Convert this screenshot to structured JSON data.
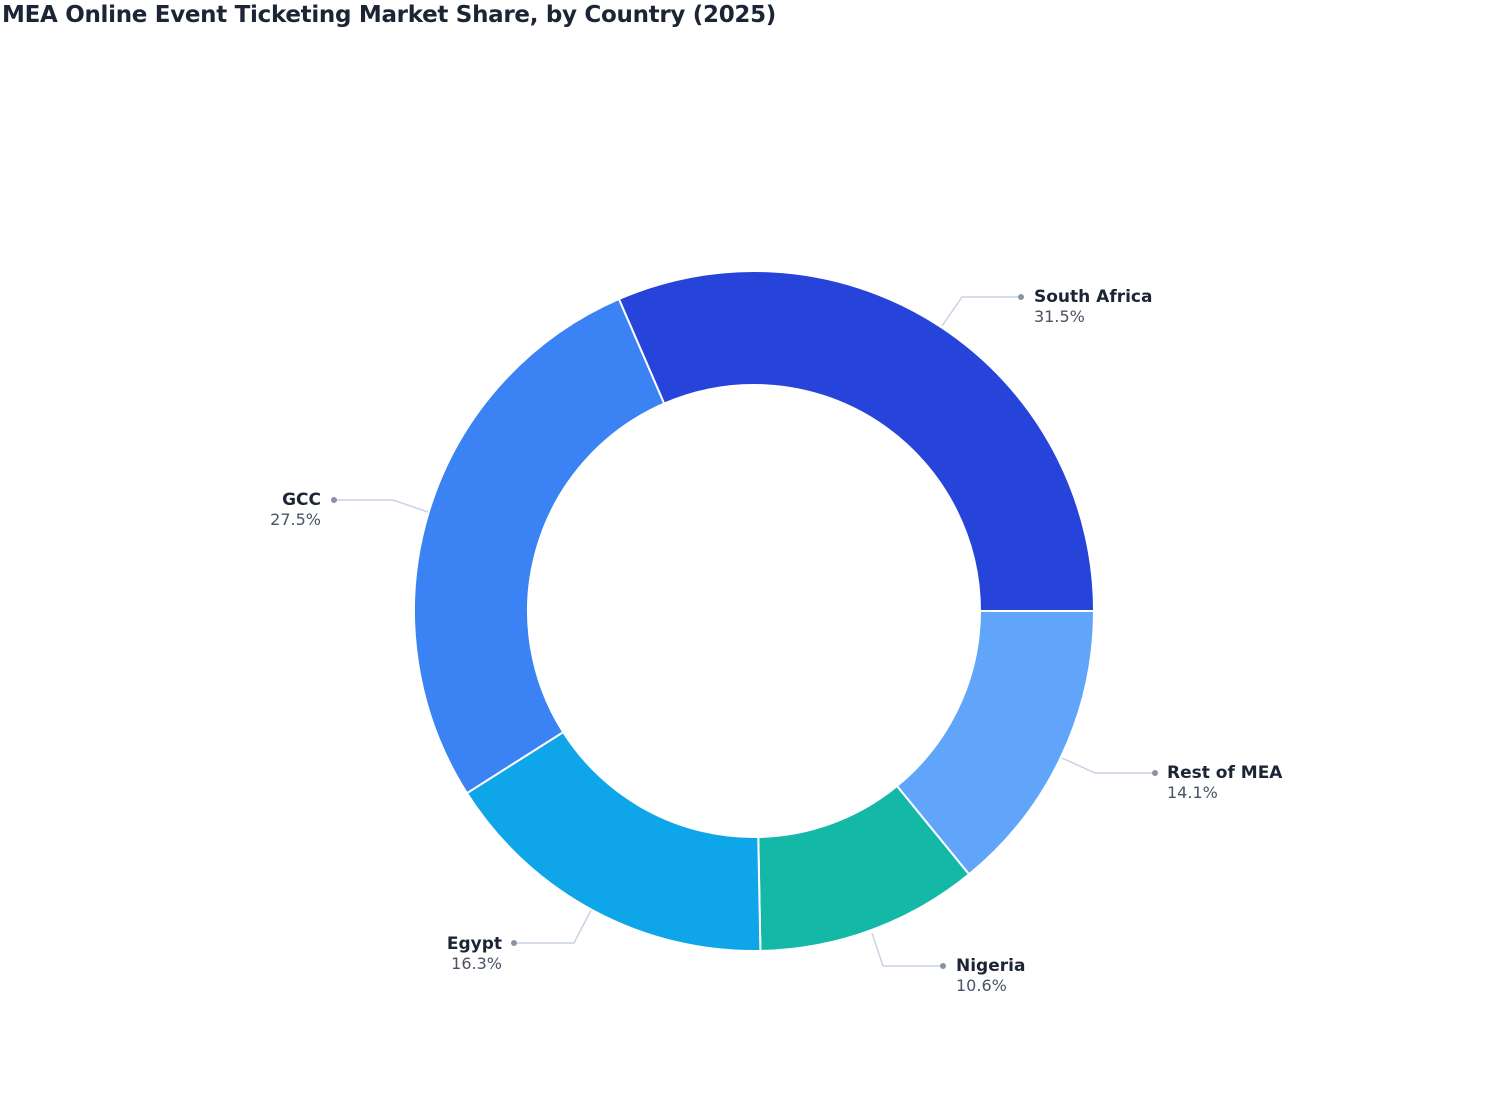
{
  "title": "MEA Online Event Ticketing Market Share, by Country (2025)",
  "chart_data": {
    "type": "pie",
    "subtype": "donut",
    "title": "MEA Online Event Ticketing Market Share, by Country (2025)",
    "categories": [
      "South Africa",
      "GCC",
      "Egypt",
      "Nigeria",
      "Rest of MEA"
    ],
    "values": [
      31.5,
      27.5,
      16.3,
      10.6,
      14.1
    ],
    "labels": [
      "31.5%",
      "27.5%",
      "16.3%",
      "10.6%",
      "14.1%"
    ],
    "colors": [
      "#2644d9",
      "#3b82f4",
      "#0ea5e9",
      "#14b8a6",
      "#60a5fa"
    ],
    "hole": 0.66,
    "legend": "none",
    "label_position": "outside with leader lines"
  },
  "slices": [
    {
      "name": "South Africa",
      "pct": "31.5%"
    },
    {
      "name": "GCC",
      "pct": "27.5%"
    },
    {
      "name": "Egypt",
      "pct": "16.3%"
    },
    {
      "name": "Nigeria",
      "pct": "10.6%"
    },
    {
      "name": "Rest of MEA",
      "pct": "14.1%"
    }
  ]
}
